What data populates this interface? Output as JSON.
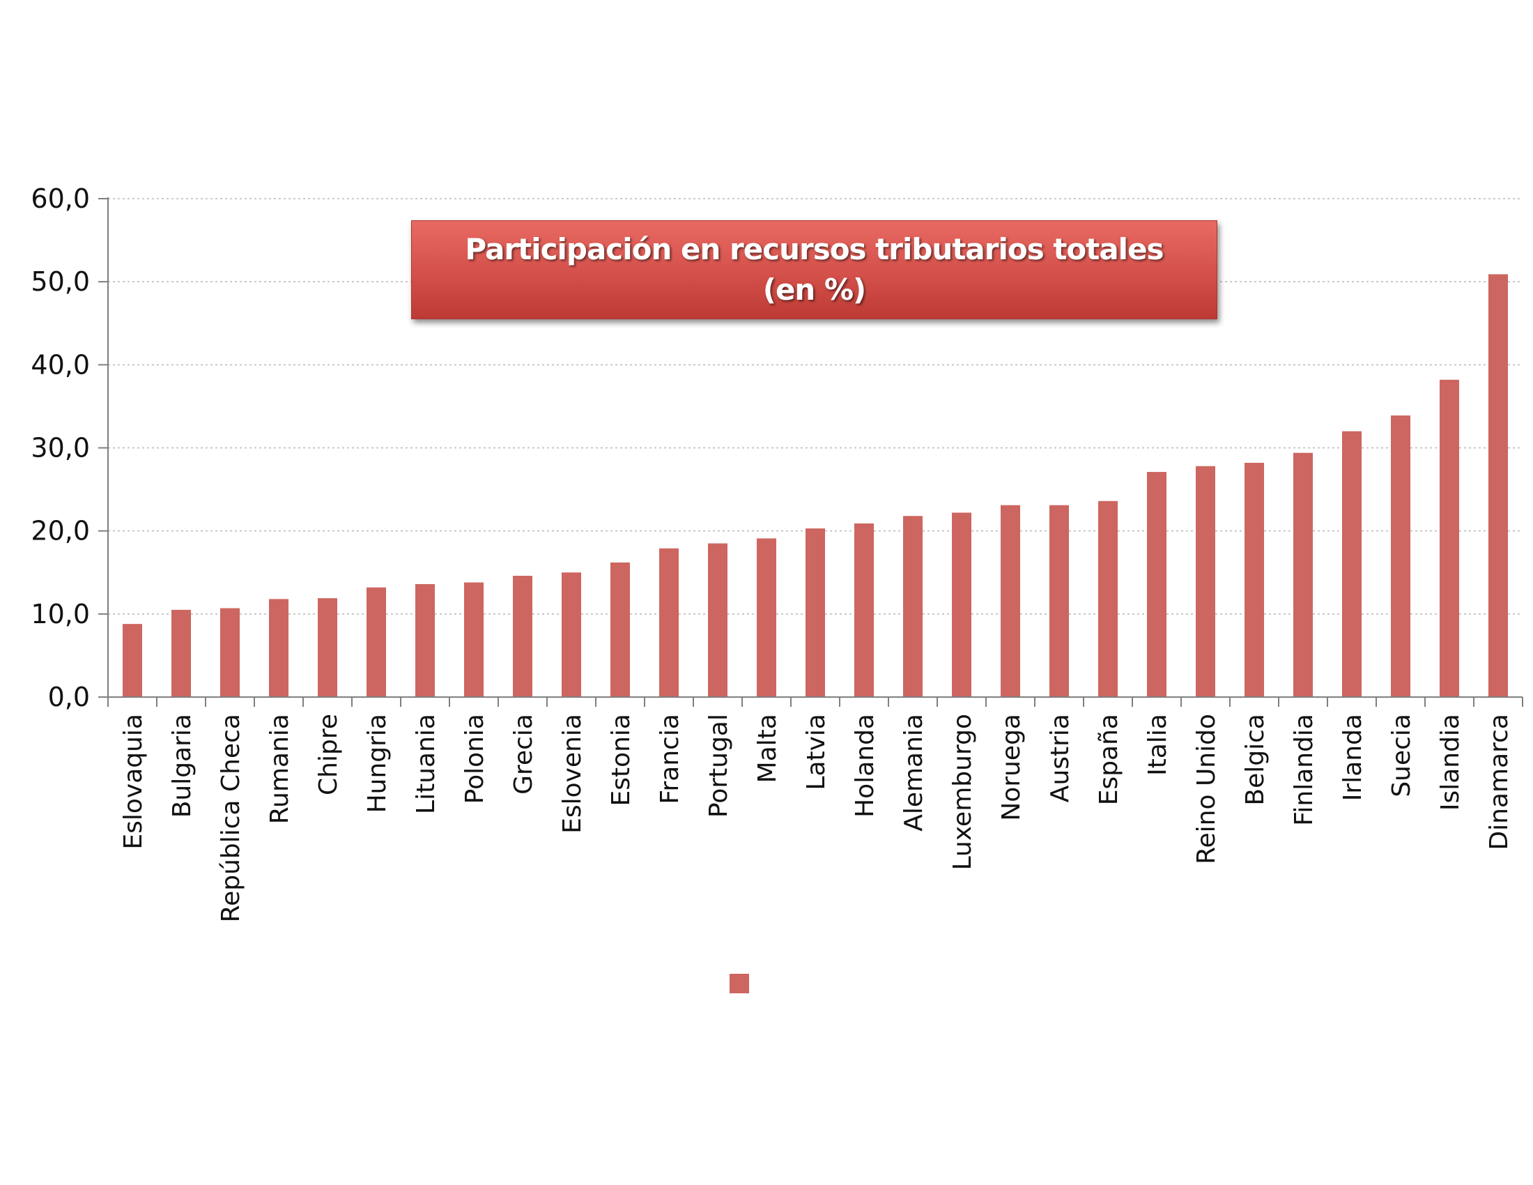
{
  "title": {
    "line1": "Participación en recursos tributarios totales",
    "line2": "(en %)"
  },
  "colors": {
    "bar": "#cd6660",
    "title_bg": "#d4504a"
  },
  "chart_data": {
    "type": "bar",
    "title": "Participación en recursos tributarios totales (en %)",
    "xlabel": "",
    "ylabel": "",
    "ylim": [
      0,
      60
    ],
    "yticks": [
      "0,0",
      "10,0",
      "20,0",
      "30,0",
      "40,0",
      "50,0",
      "60,0"
    ],
    "grid": true,
    "legend": "bottom",
    "categories": [
      "Eslovaquia",
      "Bulgaria",
      "República Checa",
      "Rumania",
      "Chipre",
      "Hungria",
      "Lituania",
      "Polonia",
      "Grecia",
      "Eslovenia",
      "Estonia",
      "Francia",
      "Portugal",
      "Malta",
      "Latvia",
      "Holanda",
      "Alemania",
      "Luxemburgo",
      "Noruega",
      "Austria",
      "España",
      "Italia",
      "Reino Unido",
      "Belgica",
      "Finlandia",
      "Irlanda",
      "Suecia",
      "Islandia",
      "Dinamarca"
    ],
    "series": [
      {
        "values": [
          8.8,
          10.5,
          10.7,
          11.8,
          11.9,
          13.2,
          13.6,
          13.8,
          14.6,
          15.0,
          16.2,
          17.9,
          18.5,
          19.1,
          20.3,
          20.9,
          21.8,
          22.2,
          23.1,
          23.1,
          23.6,
          27.1,
          27.8,
          28.2,
          29.4,
          32.0,
          33.9,
          38.2,
          50.9
        ]
      }
    ]
  }
}
